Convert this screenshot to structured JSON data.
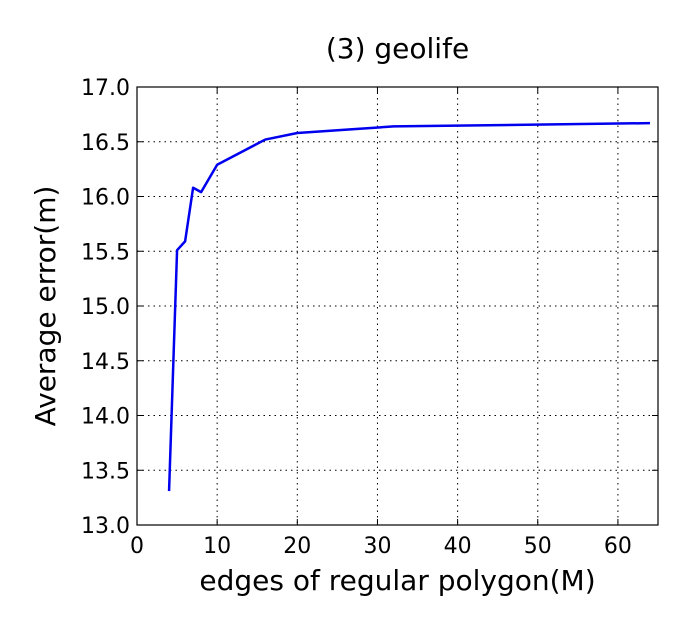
{
  "chart_data": {
    "type": "line",
    "title": "(3) geolife",
    "xlabel": "edges of regular polygon(M)",
    "ylabel": "Average error(m)",
    "xlim": [
      0,
      65
    ],
    "ylim": [
      13.0,
      17.0
    ],
    "x_ticks": [
      0,
      10,
      20,
      30,
      40,
      50,
      60
    ],
    "x_tick_labels": [
      "0",
      "10",
      "20",
      "30",
      "40",
      "50",
      "60"
    ],
    "y_ticks": [
      13.0,
      13.5,
      14.0,
      14.5,
      15.0,
      15.5,
      16.0,
      16.5,
      17.0
    ],
    "y_tick_labels": [
      "13.0",
      "13.5",
      "14.0",
      "14.5",
      "15.0",
      "15.5",
      "16.0",
      "16.5",
      "17.0"
    ],
    "grid": true,
    "series": [
      {
        "color": "#0000ee",
        "x": [
          4,
          5,
          6,
          7,
          8,
          10,
          16,
          20,
          32,
          64
        ],
        "y": [
          13.31,
          15.51,
          15.59,
          16.08,
          16.04,
          16.29,
          16.52,
          16.58,
          16.64,
          16.67
        ]
      }
    ]
  }
}
